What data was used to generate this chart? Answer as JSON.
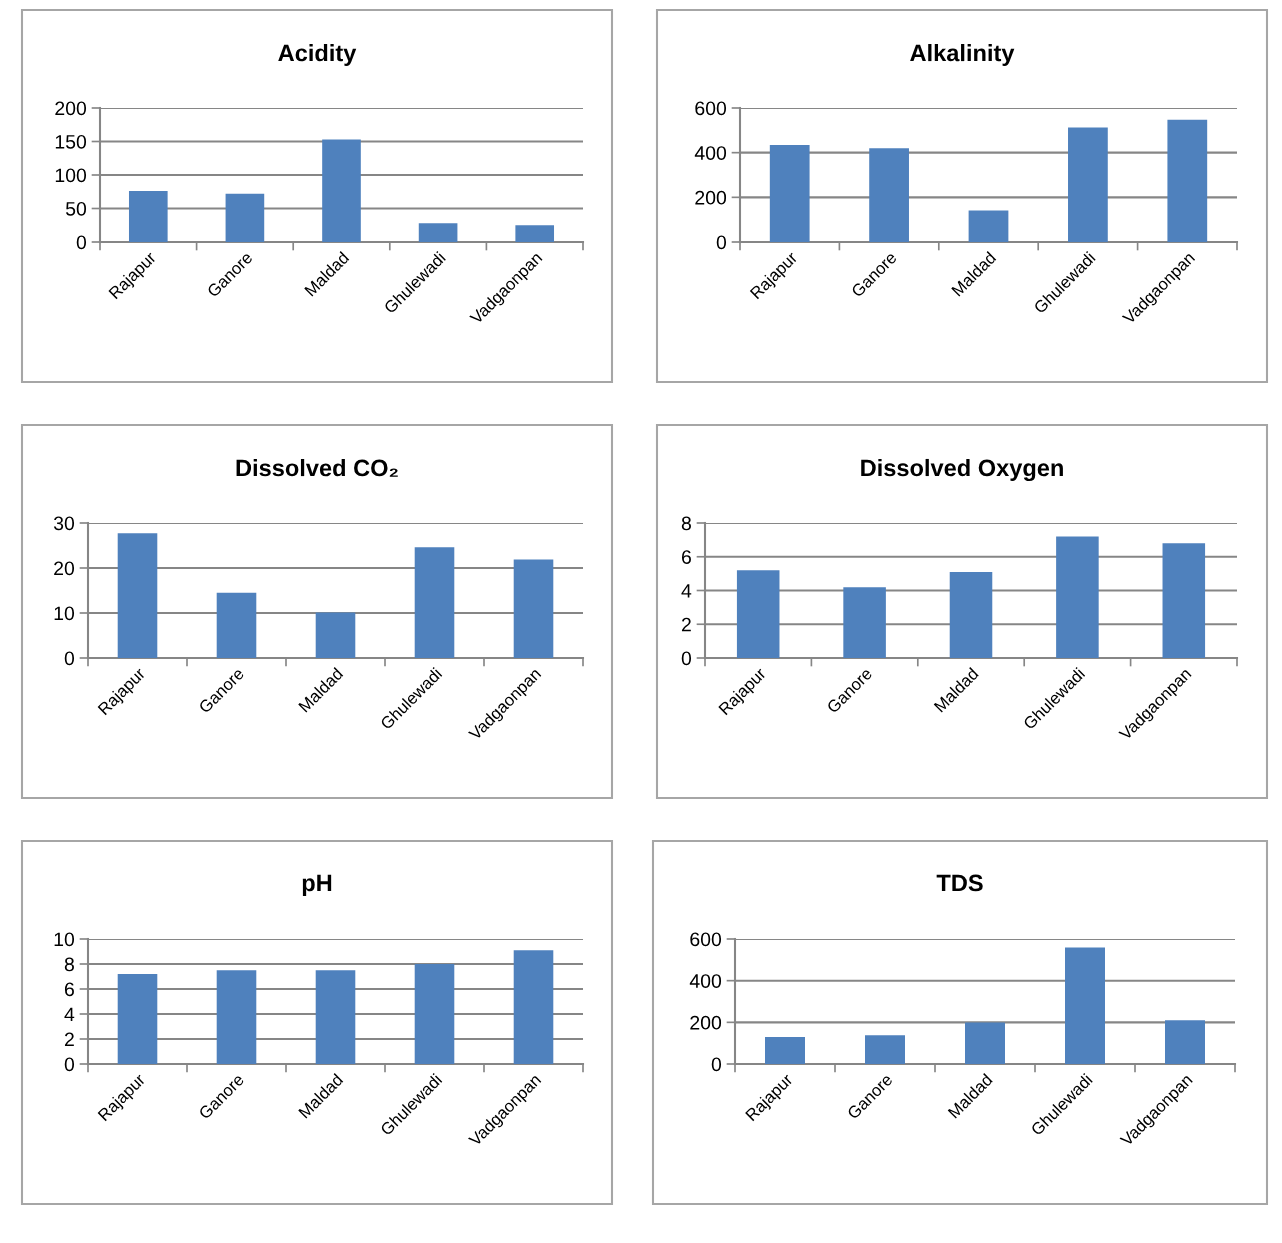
{
  "chart_data": [
    {
      "type": "bar",
      "title": "Acidity",
      "categories": [
        "Rajapur",
        "Ganore",
        "Maldad",
        "Ghulewadi",
        "Vadgaonpan"
      ],
      "values": [
        76,
        72,
        153,
        28,
        25
      ],
      "color": "#4f81bd",
      "ylim": [
        0,
        200
      ],
      "yticks": [
        0,
        50,
        100,
        150,
        200
      ],
      "grid": "y"
    },
    {
      "type": "bar",
      "title": "Alkalinity",
      "categories": [
        "Rajapur",
        "Ganore",
        "Maldad",
        "Ghulewadi",
        "Vadgaonpan"
      ],
      "values": [
        434,
        420,
        141,
        513,
        547
      ],
      "color": "#4f81bd",
      "ylim": [
        0,
        600
      ],
      "yticks": [
        0,
        200,
        400,
        600
      ],
      "grid": "y"
    },
    {
      "type": "bar",
      "title": "Dissolved CO₂",
      "categories": [
        "Rajapur",
        "Ganore",
        "Maldad",
        "Ghulewadi",
        "Vadgaonpan"
      ],
      "values": [
        27.7,
        14.5,
        10.1,
        24.6,
        21.9
      ],
      "color": "#4f81bd",
      "ylim": [
        0,
        30
      ],
      "yticks": [
        0,
        10,
        20,
        30
      ],
      "grid": "y"
    },
    {
      "type": "bar",
      "title": "Dissolved Oxygen",
      "categories": [
        "Rajapur",
        "Ganore",
        "Maldad",
        "Ghulewadi",
        "Vadgaonpan"
      ],
      "values": [
        5.2,
        4.2,
        5.1,
        7.2,
        6.8
      ],
      "color": "#4f81bd",
      "ylim": [
        0,
        8
      ],
      "yticks": [
        0,
        2,
        4,
        6,
        8
      ],
      "grid": "y"
    },
    {
      "type": "bar",
      "title": "pH",
      "categories": [
        "Rajapur",
        "Ganore",
        "Maldad",
        "Ghulewadi",
        "Vadgaonpan"
      ],
      "values": [
        7.2,
        7.5,
        7.5,
        8.0,
        9.1
      ],
      "color": "#4f81bd",
      "ylim": [
        0,
        10
      ],
      "yticks": [
        0,
        2,
        4,
        6,
        8,
        10
      ],
      "grid": "y"
    },
    {
      "type": "bar",
      "title": "TDS",
      "categories": [
        "Rajapur",
        "Ganore",
        "Maldad",
        "Ghulewadi",
        "Vadgaonpan"
      ],
      "values": [
        129,
        138,
        199,
        559,
        210
      ],
      "color": "#4f81bd",
      "ylim": [
        0,
        600
      ],
      "yticks": [
        0,
        200,
        400,
        600
      ],
      "grid": "y"
    }
  ]
}
